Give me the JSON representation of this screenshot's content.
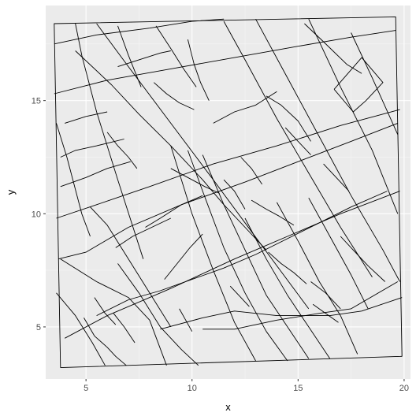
{
  "chart_data": {
    "type": "line",
    "title": "",
    "xlabel": "x",
    "ylabel": "y",
    "xlim": [
      3.1,
      20.3
    ],
    "ylim": [
      2.7,
      19.2
    ],
    "x_ticks": [
      5,
      10,
      15,
      20
    ],
    "y_ticks": [
      5,
      10,
      15
    ],
    "x_tick_labels": [
      "5",
      "10",
      "15",
      "20"
    ],
    "y_tick_labels": [
      "5",
      "10",
      "15"
    ],
    "grid": true,
    "legend": "none",
    "colors": {
      "panel": "#ebebeb",
      "grid_major": "#ffffff",
      "grid_minor": "#f5f5f5",
      "lines": "#000000",
      "tick_text": "#4d4d4d"
    },
    "series": [
      {
        "x": [
          3.8,
          19.9,
          19.6,
          3.5,
          3.8
        ],
        "y": [
          3.2,
          3.7,
          18.7,
          18.4,
          3.2
        ]
      },
      {
        "x": [
          3.5,
          6.0,
          9.0,
          12.0,
          15.0,
          17.5,
          19.6
        ],
        "y": [
          15.3,
          15.9,
          16.4,
          16.9,
          17.4,
          17.8,
          18.1
        ]
      },
      {
        "x": [
          3.5,
          5.5,
          8.0,
          10.0,
          11.5
        ],
        "y": [
          17.5,
          17.9,
          18.2,
          18.5,
          18.6
        ]
      },
      {
        "x": [
          3.7,
          5.0,
          7.0,
          9.5,
          12.5,
          15.0,
          17.5,
          19.7
        ],
        "y": [
          8.0,
          8.3,
          9.4,
          10.4,
          11.4,
          12.3,
          13.2,
          14.0
        ]
      },
      {
        "x": [
          3.6,
          5.5,
          8.0,
          11.0,
          14.0,
          17.0,
          19.8
        ],
        "y": [
          9.8,
          10.4,
          11.2,
          12.2,
          13.0,
          13.9,
          14.6
        ]
      },
      {
        "x": [
          4.0,
          6.0,
          9.0,
          12.0,
          14.5,
          17.0,
          19.8
        ],
        "y": [
          4.5,
          5.5,
          6.7,
          8.0,
          9.0,
          10.0,
          11.0
        ]
      },
      {
        "x": [
          8.5,
          10.5,
          12.0,
          14.0,
          16.5,
          18.0,
          19.9
        ],
        "y": [
          4.9,
          5.4,
          5.7,
          5.5,
          5.5,
          5.7,
          6.3
        ]
      },
      {
        "x": [
          5.5,
          7.0,
          8.5,
          10.0,
          11.5,
          13.0,
          14.5,
          16.0,
          17.5,
          19.2
        ],
        "y": [
          5.5,
          6.2,
          6.6,
          7.1,
          7.6,
          8.2,
          8.9,
          9.6,
          10.3,
          11.0
        ]
      },
      {
        "x": [
          10.5,
          12.0,
          14.0,
          16.0,
          17.5,
          19.7
        ],
        "y": [
          4.9,
          4.9,
          5.3,
          5.6,
          5.8,
          7.0
        ]
      },
      {
        "x": [
          4.5,
          6.2,
          7.5,
          9.0,
          10.5,
          11.5,
          12.5,
          13.5
        ],
        "y": [
          17.2,
          15.7,
          14.4,
          13.0,
          11.5,
          10.4,
          9.4,
          8.4
        ]
      },
      {
        "x": [
          5.5,
          7.0,
          9.0,
          11.0,
          12.5,
          14.0,
          15.5
        ],
        "y": [
          18.4,
          16.5,
          14.0,
          11.5,
          9.6,
          7.7,
          5.8
        ]
      },
      {
        "x": [
          11.5,
          12.5,
          14.0,
          15.5,
          17.0,
          18.5
        ],
        "y": [
          18.5,
          16.8,
          14.2,
          11.8,
          9.4,
          7.2
        ]
      },
      {
        "x": [
          13.0,
          14.5,
          16.0,
          17.5,
          19.0,
          19.8
        ],
        "y": [
          18.6,
          16.0,
          13.4,
          10.8,
          8.4,
          7.0
        ]
      },
      {
        "x": [
          15.5,
          17.0,
          18.5,
          19.7
        ],
        "y": [
          18.6,
          15.6,
          12.8,
          10.0
        ]
      },
      {
        "x": [
          17.5,
          18.5,
          19.7
        ],
        "y": [
          18.0,
          16.0,
          13.5
        ]
      },
      {
        "x": [
          3.8,
          5.5,
          7.0,
          8.0,
          8.8
        ],
        "y": [
          8.0,
          7.0,
          6.3,
          5.3,
          3.3
        ]
      },
      {
        "x": [
          5.2,
          6.0,
          7.0,
          8.0,
          9.0
        ],
        "y": [
          10.3,
          9.5,
          8.0,
          6.5,
          5.0
        ]
      },
      {
        "x": [
          9.0,
          9.5,
          10.0,
          11.0,
          12.0,
          13.0
        ],
        "y": [
          13.0,
          11.5,
          10.0,
          7.5,
          5.2,
          3.5
        ]
      },
      {
        "x": [
          9.8,
          10.5,
          11.5,
          12.5,
          13.5,
          14.5
        ],
        "y": [
          12.8,
          11.0,
          8.5,
          6.5,
          4.8,
          3.5
        ]
      },
      {
        "x": [
          10.5,
          11.5,
          12.7,
          13.5,
          14.5,
          15.5
        ],
        "y": [
          12.6,
          10.4,
          8.0,
          6.4,
          5.0,
          3.6
        ]
      },
      {
        "x": [
          12.5,
          13.5,
          14.5,
          15.5,
          16.5
        ],
        "y": [
          9.8,
          8.0,
          6.4,
          5.0,
          3.6
        ]
      },
      {
        "x": [
          14.0,
          15.0,
          16.0,
          17.0,
          17.8
        ],
        "y": [
          10.5,
          8.8,
          7.0,
          5.5,
          3.8
        ]
      },
      {
        "x": [
          15.5,
          16.5,
          17.5,
          18.3
        ],
        "y": [
          10.7,
          9.0,
          7.3,
          5.8
        ]
      },
      {
        "x": [
          4.5,
          4.8,
          5.5,
          6.5,
          7.7
        ],
        "y": [
          18.4,
          17.0,
          14.5,
          11.5,
          8.0
        ]
      },
      {
        "x": [
          6.5,
          7.0,
          7.6
        ],
        "y": [
          18.3,
          17.0,
          15.6
        ]
      },
      {
        "x": [
          3.6,
          4.1,
          4.8,
          5.2
        ],
        "y": [
          14.0,
          12.5,
          10.0,
          9.0
        ]
      },
      {
        "x": [
          3.6,
          4.5,
          5.3,
          5.9
        ],
        "y": [
          6.5,
          5.5,
          4.3,
          3.3
        ]
      },
      {
        "x": [
          4.9,
          5.4,
          6.0,
          6.4,
          6.9
        ],
        "y": [
          5.4,
          4.6,
          4.1,
          3.7,
          3.3
        ]
      },
      {
        "x": [
          6.5,
          7.5,
          8.5,
          9.5,
          10.3
        ],
        "y": [
          7.8,
          6.5,
          5.0,
          4.0,
          3.3
        ]
      },
      {
        "x": [
          4.0,
          5.0,
          6.0
        ],
        "y": [
          14.0,
          14.3,
          14.5
        ]
      },
      {
        "x": [
          3.8,
          4.5,
          5.5,
          6.8
        ],
        "y": [
          12.5,
          12.8,
          13.0,
          13.3
        ]
      },
      {
        "x": [
          3.8,
          5.0,
          6.0,
          7.1
        ],
        "y": [
          11.2,
          11.6,
          12.0,
          12.3
        ]
      },
      {
        "x": [
          8.3,
          9.0,
          9.6,
          10.2
        ],
        "y": [
          18.3,
          17.3,
          16.4,
          15.6
        ]
      },
      {
        "x": [
          9.8,
          10.1,
          10.4,
          10.8
        ],
        "y": [
          17.7,
          16.6,
          15.8,
          15.0
        ]
      },
      {
        "x": [
          6.5,
          7.5,
          8.5,
          9.0
        ],
        "y": [
          16.5,
          16.8,
          17.1,
          17.2
        ]
      },
      {
        "x": [
          16.7,
          17.6,
          18.2,
          19.0,
          18.0,
          16.7
        ],
        "y": [
          15.5,
          14.5,
          15.0,
          15.8,
          16.9,
          15.5
        ]
      },
      {
        "x": [
          15.3,
          16.2,
          17.3,
          18.0
        ],
        "y": [
          18.4,
          17.6,
          16.6,
          16.2
        ]
      },
      {
        "x": [
          13.5,
          14.2,
          15.0,
          15.6
        ],
        "y": [
          15.2,
          14.8,
          14.1,
          13.2
        ]
      },
      {
        "x": [
          11.0,
          12.0,
          13.0,
          14.0
        ],
        "y": [
          14.0,
          14.5,
          14.8,
          15.4
        ]
      },
      {
        "x": [
          7.8,
          8.5,
          9.5,
          10.5
        ],
        "y": [
          9.4,
          9.8,
          10.4,
          10.8
        ]
      },
      {
        "x": [
          8.7,
          9.3,
          9.9,
          10.5
        ],
        "y": [
          7.1,
          7.8,
          8.5,
          9.1
        ]
      },
      {
        "x": [
          9.4,
          9.7,
          10.0
        ],
        "y": [
          5.8,
          5.3,
          4.8
        ]
      },
      {
        "x": [
          6.3,
          6.8,
          7.3
        ],
        "y": [
          5.6,
          5.0,
          4.3
        ]
      },
      {
        "x": [
          5.4,
          5.9,
          6.4
        ],
        "y": [
          6.3,
          5.6,
          5.1
        ]
      },
      {
        "x": [
          11.5,
          12.0,
          12.5
        ],
        "y": [
          11.5,
          11.0,
          10.2
        ]
      },
      {
        "x": [
          12.3,
          12.8,
          13.3
        ],
        "y": [
          12.5,
          12.0,
          11.3
        ]
      },
      {
        "x": [
          16.2,
          16.8,
          17.4
        ],
        "y": [
          12.2,
          11.6,
          11.0
        ]
      },
      {
        "x": [
          17.0,
          17.6,
          18.3,
          19.1
        ],
        "y": [
          9.0,
          8.4,
          7.7,
          7.0
        ]
      },
      {
        "x": [
          15.6,
          16.3,
          17.0
        ],
        "y": [
          7.0,
          6.5,
          5.8
        ]
      },
      {
        "x": [
          13.6,
          14.2,
          14.8,
          15.4
        ],
        "y": [
          8.3,
          7.8,
          7.4,
          6.9
        ]
      },
      {
        "x": [
          14.4,
          15.0,
          15.6
        ],
        "y": [
          13.8,
          13.2,
          12.6
        ]
      },
      {
        "x": [
          11.8,
          12.3,
          12.7
        ],
        "y": [
          6.8,
          6.3,
          5.9
        ]
      },
      {
        "x": [
          15.7,
          16.3,
          16.9
        ],
        "y": [
          6.0,
          5.6,
          5.2
        ]
      },
      {
        "x": [
          6.4,
          7.2,
          8.1,
          9.0
        ],
        "y": [
          8.5,
          9.0,
          9.4,
          9.8
        ]
      },
      {
        "x": [
          8.2,
          8.8,
          9.4,
          10.1
        ],
        "y": [
          15.8,
          15.3,
          14.9,
          14.6
        ]
      },
      {
        "x": [
          6.0,
          6.5,
          7.0,
          7.4
        ],
        "y": [
          13.6,
          13.0,
          12.5,
          12.0
        ]
      },
      {
        "x": [
          9.0,
          9.8,
          10.6,
          11.3
        ],
        "y": [
          12.0,
          11.6,
          11.2,
          10.9
        ]
      },
      {
        "x": [
          12.8,
          13.5,
          14.1,
          14.8
        ],
        "y": [
          10.6,
          10.2,
          9.9,
          9.5
        ]
      }
    ]
  }
}
